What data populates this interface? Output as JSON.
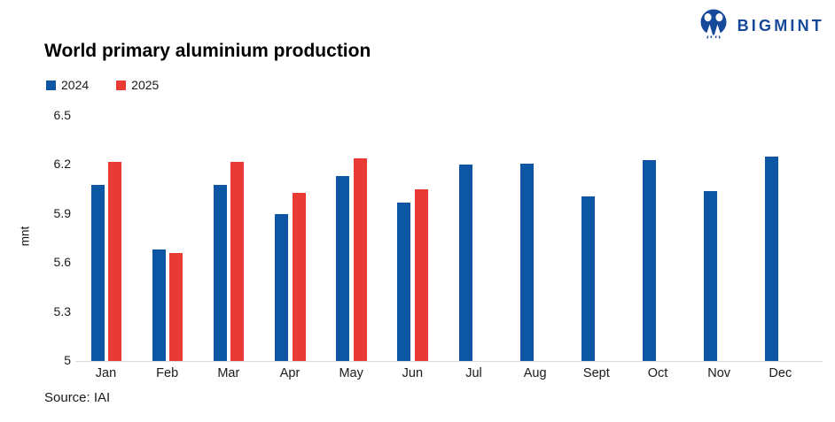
{
  "logo": {
    "text": "BIGMINT",
    "color": "#17499b"
  },
  "source_note": "Source: IAI",
  "chart_data": {
    "type": "bar",
    "title": "World primary aluminium production",
    "xlabel": "",
    "ylabel": "mnt",
    "ylim": [
      5,
      6.5
    ],
    "yticks": [
      6.5,
      6.2,
      5.9,
      5.6,
      5.3,
      5
    ],
    "grid": false,
    "legend_position": "top-left",
    "categories": [
      "Jan",
      "Feb",
      "Mar",
      "Apr",
      "May",
      "Jun",
      "Jul",
      "Aug",
      "Sept",
      "Oct",
      "Nov",
      "Dec"
    ],
    "series": [
      {
        "name": "2024",
        "color": "#0d56a4",
        "values": [
          6.08,
          5.68,
          6.08,
          5.9,
          6.13,
          5.97,
          6.2,
          6.21,
          6.01,
          6.23,
          6.04,
          6.25
        ]
      },
      {
        "name": "2025",
        "color": "#e93a35",
        "values": [
          6.22,
          5.66,
          6.22,
          6.03,
          6.24,
          6.05,
          null,
          null,
          null,
          null,
          null,
          null
        ]
      }
    ]
  }
}
